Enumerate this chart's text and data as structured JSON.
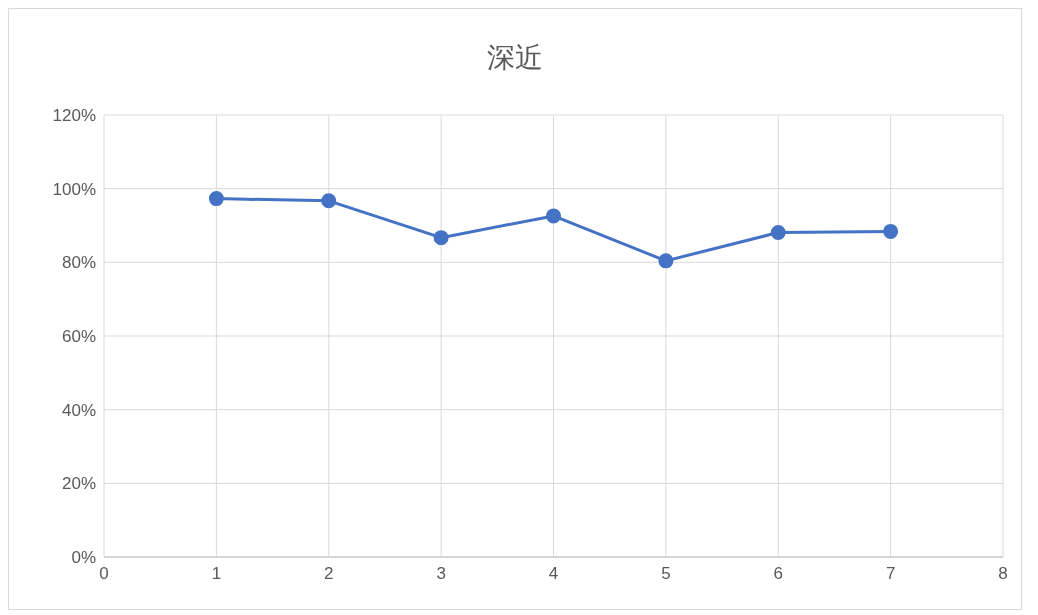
{
  "chart_data": {
    "type": "line",
    "title": "深近",
    "x": [
      1,
      2,
      3,
      4,
      5,
      6,
      7
    ],
    "series": [
      {
        "color": "#4472c4",
        "values": [
          97.3,
          96.7,
          86.7,
          92.6,
          80.4,
          88.1,
          88.4
        ]
      }
    ],
    "xlim": [
      0,
      8
    ],
    "xticks": [
      0,
      1,
      2,
      3,
      4,
      5,
      6,
      7,
      8
    ],
    "ylim": [
      0,
      120
    ],
    "yticks": [
      {
        "value": 0,
        "label": "0%"
      },
      {
        "value": 20,
        "label": "20%"
      },
      {
        "value": 40,
        "label": "40%"
      },
      {
        "value": 60,
        "label": "60%"
      },
      {
        "value": 80,
        "label": "80%"
      },
      {
        "value": 100,
        "label": "100%"
      },
      {
        "value": 120,
        "label": "120%"
      }
    ],
    "grid": true,
    "marker": "circle",
    "line_style": "solid"
  }
}
